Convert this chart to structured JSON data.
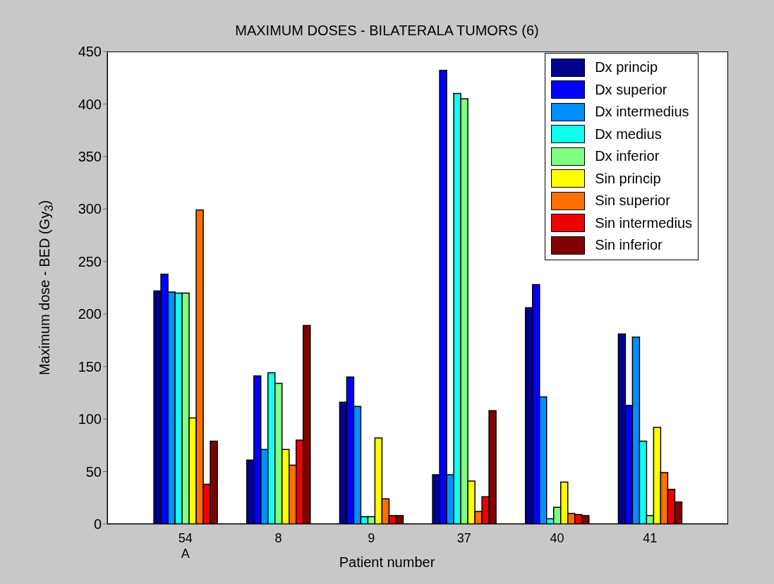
{
  "chart_data": {
    "type": "bar",
    "title": "MAXIMUM DOSES - BILATERALA TUMORS (6)",
    "xlabel": "Patient number",
    "ylabel": "Maximum dose - BED (Gy$_{3}$)",
    "categories": [
      "54\nA",
      "8",
      "9",
      "37",
      "40",
      "41"
    ],
    "series": [
      {
        "name": "Dx princip",
        "color": "#00008f",
        "values": [
          222,
          61,
          116,
          47,
          206,
          181
        ]
      },
      {
        "name": "Dx superior",
        "color": "#0000ff",
        "values": [
          238,
          141,
          140,
          432,
          228,
          113
        ]
      },
      {
        "name": "Dx intermedius",
        "color": "#0090ff",
        "values": [
          221,
          71,
          112,
          47,
          121,
          178
        ]
      },
      {
        "name": "Dx medius",
        "color": "#10ffef",
        "values": [
          220,
          144,
          7,
          410,
          5,
          79
        ]
      },
      {
        "name": "Dx inferior",
        "color": "#80ff80",
        "values": [
          220,
          134,
          7,
          405,
          16,
          8
        ]
      },
      {
        "name": "Sin princip",
        "color": "#ffff00",
        "values": [
          101,
          71,
          82,
          41,
          40,
          92
        ]
      },
      {
        "name": "Sin superior",
        "color": "#ff7000",
        "values": [
          299,
          56,
          24,
          12,
          10,
          49
        ]
      },
      {
        "name": "Sin intermedius",
        "color": "#ef0000",
        "values": [
          38,
          80,
          8,
          26,
          9,
          33
        ]
      },
      {
        "name": "Sin inferior",
        "color": "#800000",
        "values": [
          79,
          189,
          8,
          108,
          8,
          21
        ]
      }
    ],
    "ylim": [
      0,
      450
    ],
    "yticks": [
      0,
      50,
      100,
      150,
      200,
      250,
      300,
      350,
      400,
      450
    ],
    "legend": "top right"
  }
}
